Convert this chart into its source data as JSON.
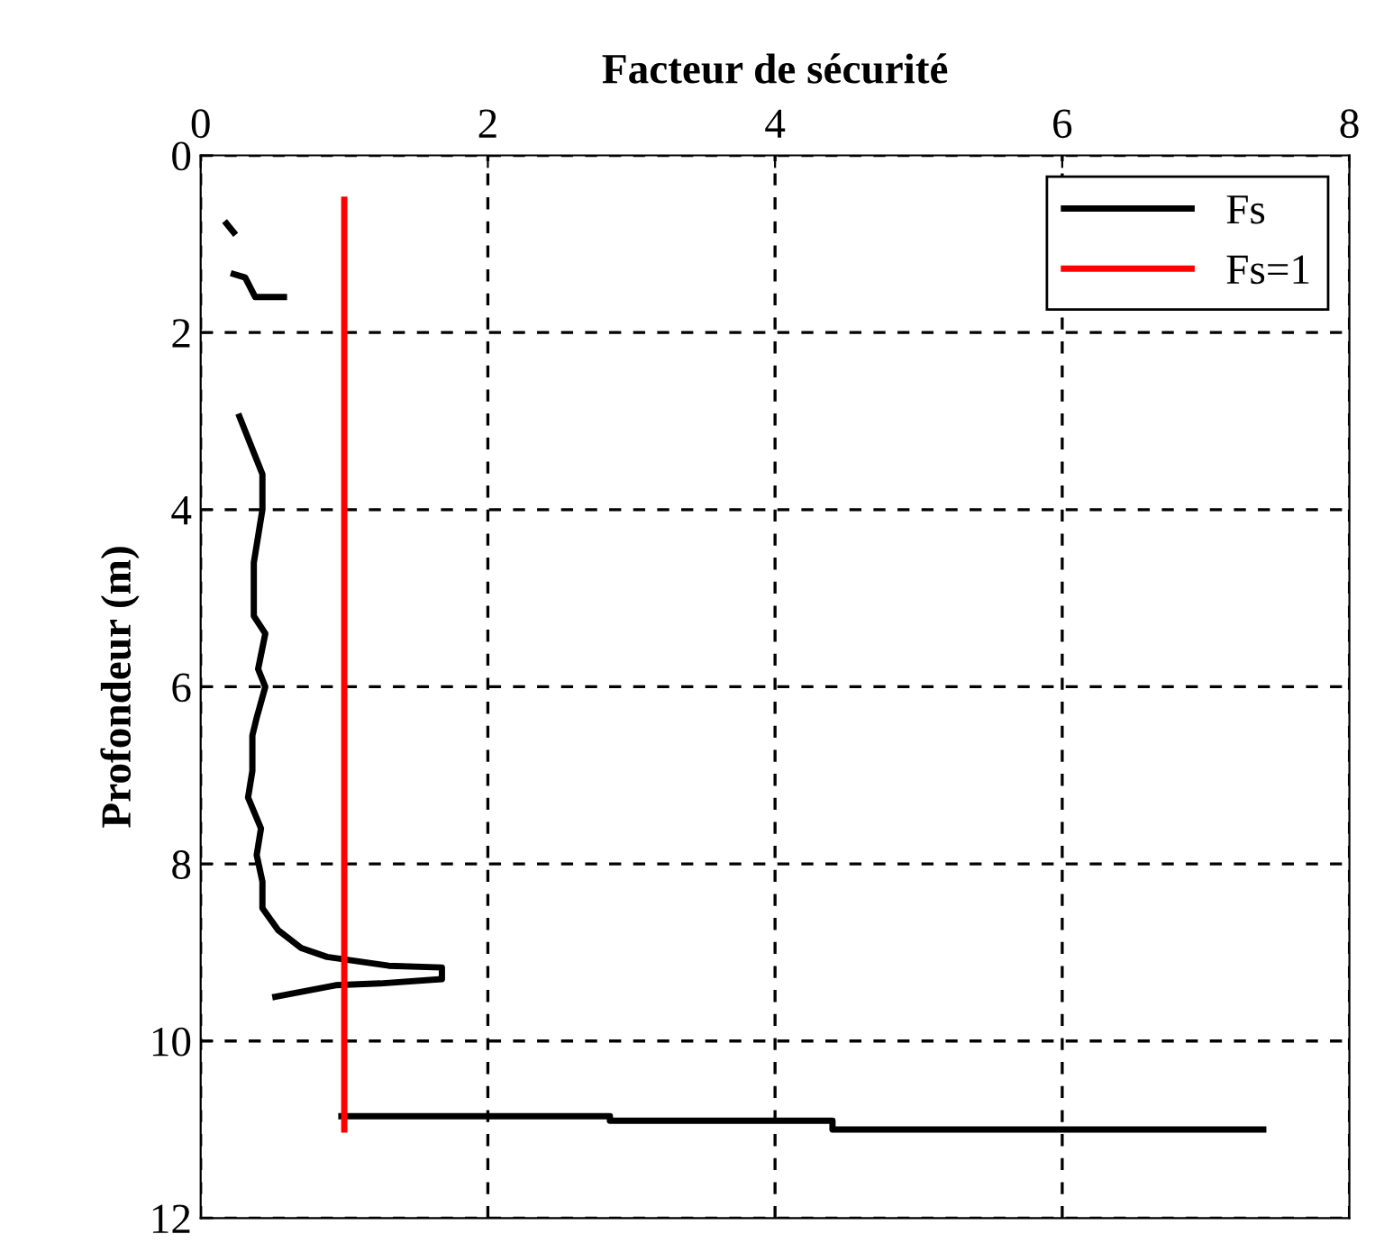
{
  "chart_data": {
    "type": "line",
    "xlabel": "Facteur de sécurité",
    "ylabel": "Profondeur (m)",
    "xlim": [
      0,
      8
    ],
    "xticks": [
      0,
      2,
      4,
      6,
      8
    ],
    "ylim": [
      12,
      0
    ],
    "yticks": [
      0,
      2,
      4,
      6,
      8,
      10,
      12
    ],
    "grid": true,
    "legend": "top right",
    "line_style": "solid",
    "series": [
      {
        "name": "Fs",
        "color": "#000000",
        "x": [
          0.18,
          0.23,
          null,
          0.23,
          0.31,
          0.38,
          0.58,
          null,
          0.27,
          0.43,
          0.43,
          0.37,
          0.37,
          0.45,
          0.4,
          0.45,
          0.39,
          0.36,
          0.36,
          0.33,
          0.42,
          0.39,
          0.43,
          0.43,
          0.54,
          0.7,
          0.88,
          1.31,
          1.68,
          1.68,
          1.25,
          0.94,
          0.52,
          null,
          0.98,
          2.85,
          2.85,
          4.4,
          4.4,
          7.4
        ],
        "values": [
          0.77,
          0.87,
          null,
          1.34,
          1.38,
          1.6,
          1.6,
          null,
          2.95,
          3.6,
          4.0,
          4.6,
          5.2,
          5.4,
          5.8,
          6.0,
          6.35,
          6.55,
          6.95,
          7.25,
          7.6,
          7.9,
          8.2,
          8.5,
          8.75,
          8.95,
          9.05,
          9.15,
          9.17,
          9.3,
          9.35,
          9.37,
          9.5,
          null,
          10.85,
          10.85,
          10.9,
          10.9,
          11.0,
          11.0
        ]
      },
      {
        "name": "Fs=1",
        "color": "#ff0000",
        "x": [
          1,
          1
        ],
        "values": [
          0.5,
          11
        ]
      }
    ]
  }
}
